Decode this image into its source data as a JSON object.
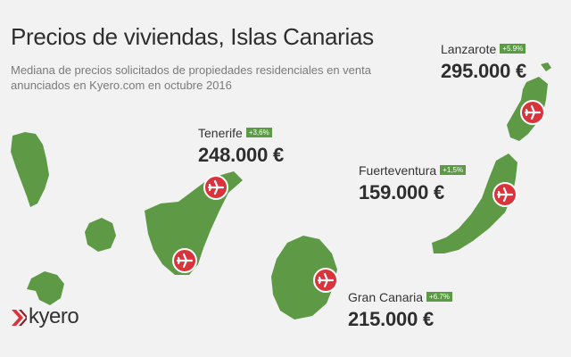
{
  "title": "Precios de viviendas, Islas Canarias",
  "subtitle": "Mediana de precios solicitados de propiedades residenciales en venta anunciados en Kyero.com en octubre 2016",
  "islands": {
    "lanzarote": {
      "name": "Lanzarote",
      "change": "+5.9%",
      "price": "295.000 €"
    },
    "tenerife": {
      "name": "Tenerife",
      "change": "+3,6%",
      "price": "248.000 €"
    },
    "fuerteventura": {
      "name": "Fuerteventura",
      "change": "+1,5%",
      "price": "159.000 €"
    },
    "gran_canaria": {
      "name": "Gran Canaria",
      "change": "+6.7%",
      "price": "215.000 €"
    }
  },
  "brand": {
    "name": "kyero",
    "logo_color": "#d9343c"
  },
  "colors": {
    "island_fill": "#5e9946",
    "airport_marker": "#d9343c",
    "badge": "#5a9b43",
    "background": "#f2f2f2"
  },
  "icons": {
    "airport": "airplane-icon"
  }
}
